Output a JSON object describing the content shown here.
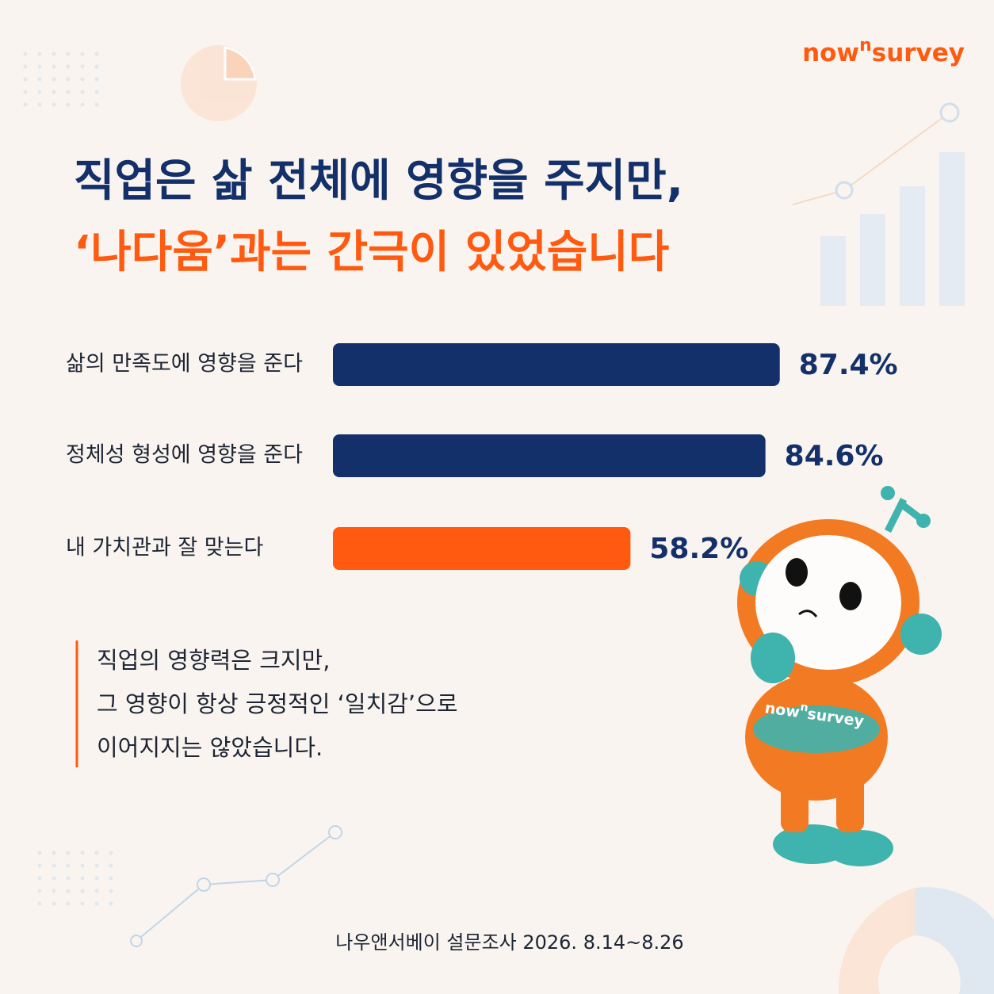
{
  "brand": {
    "logo": [
      "now",
      "n",
      "survey"
    ],
    "mascot_text": [
      "now",
      "n",
      "survey"
    ]
  },
  "chart_data": {
    "type": "bar",
    "orientation": "horizontal",
    "title": [
      "직업은 삶 전체에 영향을 주지만,",
      "‘나다움’과는 간극이 있었습니다"
    ],
    "categories": [
      "삶의 만족도에 영향을 준다",
      "정체성 형성에 영향을 준다",
      "내 가치관과 잘 맞는다"
    ],
    "values": [
      87.4,
      84.6,
      58.2
    ],
    "value_labels": [
      "87.4%",
      "84.6%",
      "58.2%"
    ],
    "colors": [
      "#14306a",
      "#14306a",
      "#ff5a0f"
    ]
  },
  "note": [
    "직업의 영향력은 크지만,",
    "그 영향이 항상 긍정적인 ‘일치감’으로",
    "이어지지는 않았습니다."
  ],
  "source": "나우앤서베이 설문조사 2026. 8.14~8.26"
}
